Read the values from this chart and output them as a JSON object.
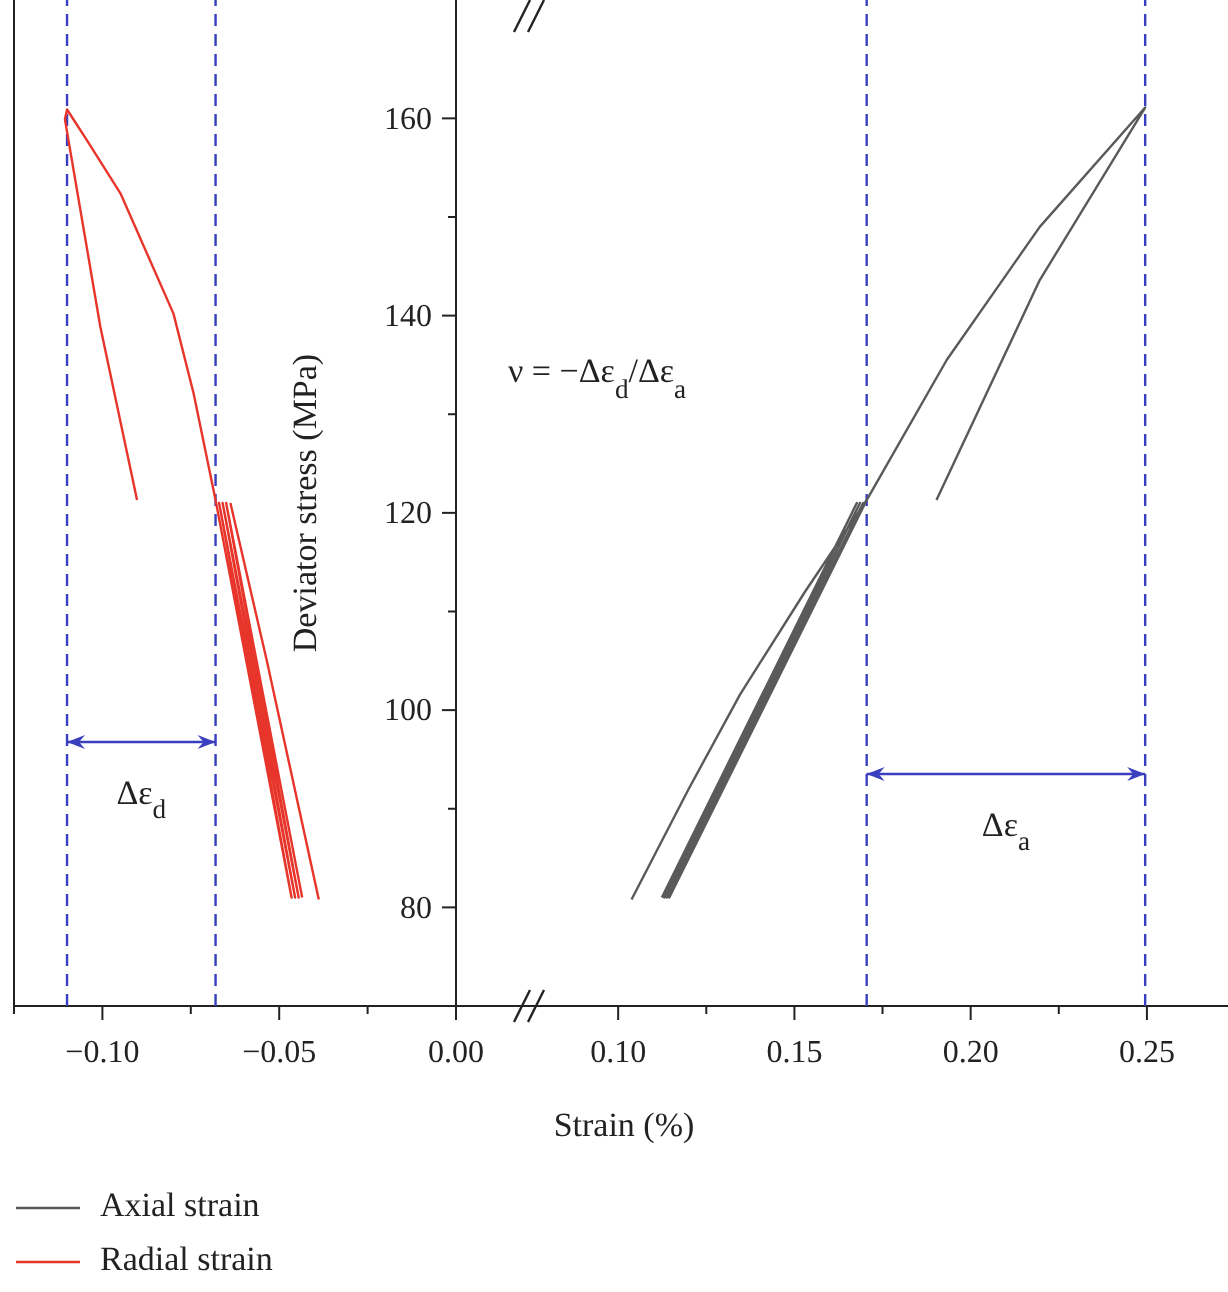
{
  "chart_data": [
    {
      "type": "line",
      "xlim": [
        -0.125,
        0.0
      ],
      "ylim": [
        70,
        172
      ],
      "tick_labels": "x",
      "legend": "bottom left",
      "xticks": [
        {
          "value": -0.125,
          "label": null
        },
        {
          "value": -0.1,
          "label": "−0.10"
        },
        {
          "value": -0.075,
          "label": null
        },
        {
          "value": -0.05,
          "label": "−0.05"
        },
        {
          "value": -0.025,
          "label": null
        },
        {
          "value": 0.0,
          "label": "0.00"
        }
      ],
      "series": [
        {
          "name": "Radial strain",
          "color": "#e8352b",
          "x": [
            -0.0435,
            -0.065,
            -0.0445,
            -0.066,
            -0.0455,
            -0.067,
            -0.0465,
            -0.068,
            -0.0742,
            -0.0799,
            -0.0949,
            -0.1044,
            -0.11,
            -0.1106,
            -0.1006,
            -0.0902,
            null,
            -0.0638,
            -0.0535,
            -0.0388
          ],
          "values": [
            81,
            121,
            81,
            121,
            81,
            121,
            81,
            121.3,
            132.1,
            140.2,
            152.4,
            157.8,
            160.9,
            159.9,
            138.9,
            121.3,
            null,
            121,
            105,
            80.8
          ]
        }
      ],
      "ref_lines": [
        {
          "axis": "x",
          "value": -0.11,
          "color": "#3a3fbf",
          "line_style": "dashed"
        },
        {
          "axis": "x",
          "value": -0.068,
          "color": "#3a3fbf",
          "line_style": "dashed"
        }
      ],
      "annotations": [
        "Δε$_{d}$"
      ]
    },
    {
      "type": "line",
      "xlim": [
        0.054,
        0.273
      ],
      "ylim": [
        70,
        172
      ],
      "xlabel": "Strain (%)",
      "ylabel": "Deviator stress (MPa)",
      "xticks": [
        {
          "value": 0.1,
          "label": "0.10"
        },
        {
          "value": 0.125,
          "label": null
        },
        {
          "value": 0.15,
          "label": "0.15"
        },
        {
          "value": 0.175,
          "label": null
        },
        {
          "value": 0.2,
          "label": "0.20"
        },
        {
          "value": 0.225,
          "label": null
        },
        {
          "value": 0.25,
          "label": "0.25"
        }
      ],
      "yticks": [
        80,
        {
          "value": 90,
          "label": null
        },
        100,
        {
          "value": 110,
          "label": null
        },
        120,
        {
          "value": 130,
          "label": null
        },
        140,
        {
          "value": 150,
          "label": null
        },
        160
      ],
      "series": [
        {
          "name": "Axial strain",
          "color": "#5a5a5a",
          "x": [
            0.1124,
            0.1677,
            0.1131,
            0.1686,
            0.1138,
            0.1695,
            0.1145,
            0.1705,
            0.1932,
            0.2196,
            0.2495,
            0.2196,
            0.1903,
            null,
            0.1038,
            0.12,
            0.1346,
            0.153,
            0.1705
          ],
          "values": [
            81,
            121,
            81,
            121,
            81,
            121,
            81,
            121.3,
            135.5,
            149.0,
            161.1,
            143.6,
            121.3,
            null,
            80.8,
            92,
            101.6,
            112,
            121.3
          ]
        }
      ],
      "ref_lines": [
        {
          "axis": "x",
          "value": 0.1705,
          "color": "#3a3fbf",
          "line_style": "dashed"
        },
        {
          "axis": "x",
          "value": 0.2495,
          "color": "#3a3fbf",
          "line_style": "dashed"
        }
      ],
      "annotations": [
        "ν = −Δε$_{d}$/Δε$_{a}$",
        "Δε$_{a}$"
      ]
    }
  ]
}
